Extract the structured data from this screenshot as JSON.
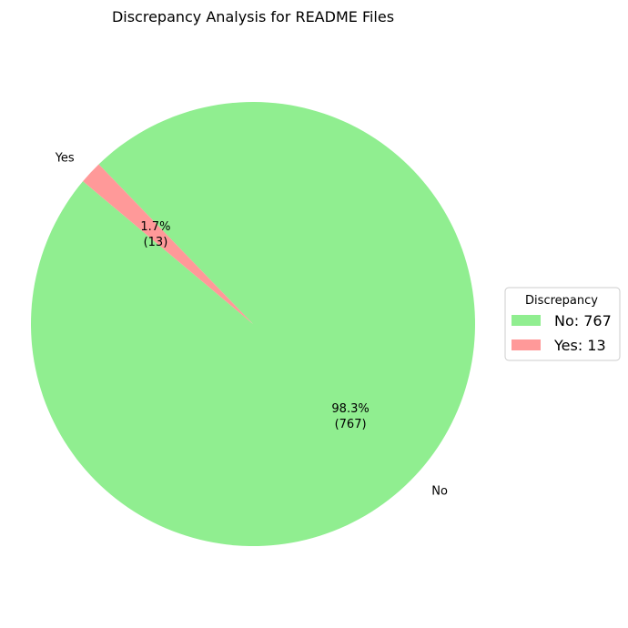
{
  "chart_data": {
    "type": "pie",
    "title": "Discrepancy Analysis for README Files",
    "slices": [
      {
        "label": "No",
        "value": 767,
        "percent_label": "98.3%",
        "count_label": "(767)",
        "color": "#90ee90"
      },
      {
        "label": "Yes",
        "value": 13,
        "percent_label": "1.7%",
        "count_label": "(13)",
        "color": "#ff9999"
      }
    ],
    "start_angle_deg": 140,
    "direction": "counterclockwise",
    "legend": {
      "title": "Discrepancy",
      "placement": "center-right",
      "entries": [
        "No: 767",
        "Yes: 13"
      ]
    }
  }
}
